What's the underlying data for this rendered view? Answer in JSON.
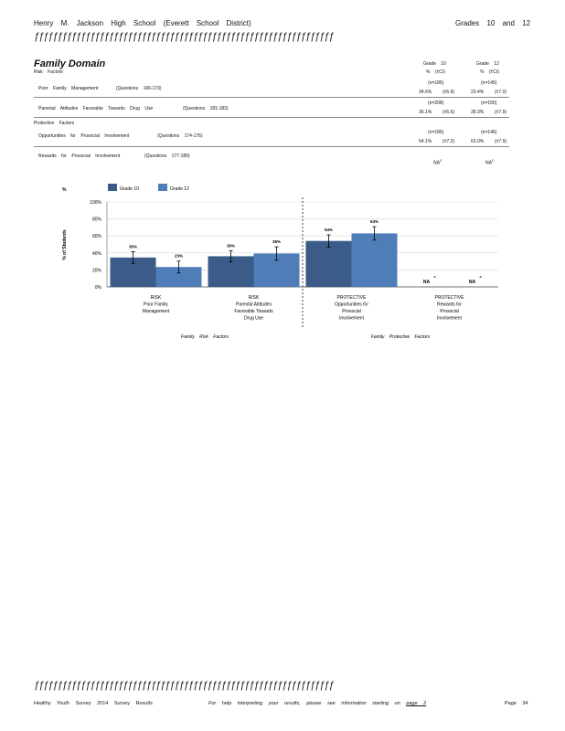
{
  "header": {
    "school": "Henry M. Jackson High School (Everett School District)",
    "grades": "Grades 10 and 12",
    "rule_text": "ƒƒƒƒƒƒƒƒƒƒƒƒƒƒƒƒƒƒƒƒƒƒƒƒƒƒƒƒƒƒƒƒƒƒƒƒƒƒƒƒƒƒƒƒƒƒƒƒƒƒƒƒƒƒƒƒƒƒƒƒƒƒƒƒ"
  },
  "domain": {
    "title": "Family Domain",
    "risk_heading": "Risk Factors",
    "protective_heading": "Protective Factors"
  },
  "columns": {
    "grade10": "Grade 10",
    "grade12": "Grade 12",
    "subhead": "% (±CI)"
  },
  "rows": [
    {
      "label": "Poor Family Management",
      "questions": "(Questions 166-173)",
      "n10": "(n=185)",
      "pct10": "34.6%",
      "ci10": "(±6.9)",
      "n12": "(n=145)",
      "pct12": "23.4%",
      "ci12": "(±7.0)"
    },
    {
      "label": "Parental Attitudes Favorable Towards Drug Use",
      "questions": "(Questions 181-183)",
      "n10": "(n=208)",
      "pct10": "36.1%",
      "ci10": "(±6.6)",
      "n12": "(n=150)",
      "pct12": "39.3%",
      "ci12": "(±7.9)"
    },
    {
      "label": "Opportunities for Prosocial Involvement",
      "questions": "(Questions 174-176)",
      "n10": "(n=185)",
      "pct10": "54.1%",
      "ci10": "(±7.2)",
      "n12": "(n=146)",
      "pct12": "63.0%",
      "ci12": "(±7.9)"
    },
    {
      "label": "Rewards for Prosocial Involvement",
      "questions": "(Questions 177-180)",
      "na10": "NA",
      "na12": "NA",
      "na_sup": "c"
    }
  ],
  "chart_data": {
    "type": "bar",
    "ylabel": "% of Students",
    "y_unit_marker": "%",
    "ylim": [
      0,
      100
    ],
    "yticks": [
      "0%",
      "20%",
      "40%",
      "60%",
      "80%",
      "100%"
    ],
    "legend": "top-left",
    "colors": {
      "Grade 10": "#3b5b88",
      "Grade 12": "#4f7db8"
    },
    "categories": [
      [
        "RISK",
        "Poor Family",
        "Management"
      ],
      [
        "RISK",
        "Parental Attitudes",
        "Favorable Towards",
        "Drug Use"
      ],
      [
        "PROTECTIVE",
        "Opportunities for",
        "Prosocial",
        "Involvement"
      ],
      [
        "PROTECTIVE",
        "Rewards for",
        "Prosocial",
        "Involvement"
      ]
    ],
    "series": [
      {
        "name": "Grade 10",
        "values": [
          34.6,
          36.1,
          54.1,
          null
        ],
        "ci": [
          6.9,
          6.6,
          7.2,
          null
        ],
        "labels": [
          "35%",
          "36%",
          "54%",
          "NA"
        ]
      },
      {
        "name": "Grade 12",
        "values": [
          23.4,
          39.3,
          63.0,
          null
        ],
        "ci": [
          7.0,
          7.9,
          7.9,
          null
        ],
        "labels": [
          "23%",
          "39%",
          "63%",
          "NA"
        ]
      }
    ],
    "na_superscript": "c",
    "group_labels": [
      "Family Risk Factors",
      "Family Protective Factors"
    ]
  },
  "footer": {
    "left": "Healthy Youth Survey 2014 Survey Results",
    "middle": "For help interpreting your results, please see information starting on",
    "link": "page 2",
    "right": "Page 34"
  }
}
